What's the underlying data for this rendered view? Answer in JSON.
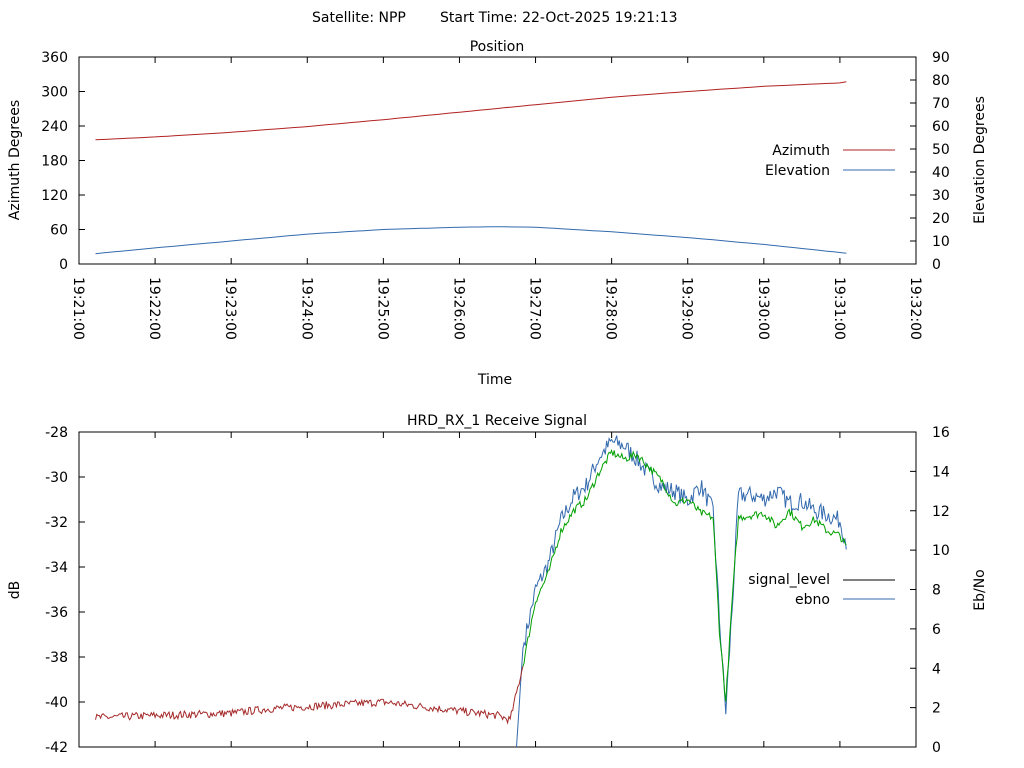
{
  "header": {
    "satellite": "Satellite: NPP",
    "start_time": "Start Time: 22-Oct-2025 19:21:13"
  },
  "chart_data": [
    {
      "type": "line",
      "title": "Position",
      "xlabel": "Time",
      "ylabel": "Azimuth Degrees",
      "y2label": "Elevation Degrees",
      "xlim": [
        "19:21:00",
        "19:32:00"
      ],
      "x_ticks": [
        "19:21:00",
        "19:22:00",
        "19:23:00",
        "19:24:00",
        "19:25:00",
        "19:26:00",
        "19:27:00",
        "19:28:00",
        "19:29:00",
        "19:30:00",
        "19:31:00",
        "19:32:00"
      ],
      "ylim": [
        0,
        360
      ],
      "y_ticks": [
        "0",
        "60",
        "120",
        "180",
        "240",
        "300",
        "360"
      ],
      "y2lim": [
        0,
        90
      ],
      "y2_ticks": [
        "0",
        "10",
        "20",
        "30",
        "40",
        "50",
        "60",
        "70",
        "80",
        "90"
      ],
      "legend_position": "right",
      "grid": false,
      "series": [
        {
          "name": "Azimuth",
          "axis": "left",
          "color": "#b22222",
          "x": [
            "19:21:13",
            "19:22:00",
            "19:23:00",
            "19:24:00",
            "19:25:00",
            "19:26:00",
            "19:27:00",
            "19:28:00",
            "19:29:00",
            "19:30:00",
            "19:31:00",
            "19:31:05"
          ],
          "values": [
            216,
            221,
            229,
            239,
            251,
            264,
            277,
            290,
            300,
            309,
            315,
            317
          ]
        },
        {
          "name": "Elevation",
          "axis": "right",
          "color": "#336aae",
          "x": [
            "19:21:13",
            "19:22:00",
            "19:23:00",
            "19:24:00",
            "19:25:00",
            "19:26:00",
            "19:26:30",
            "19:27:00",
            "19:28:00",
            "19:29:00",
            "19:30:00",
            "19:31:00",
            "19:31:05"
          ],
          "values": [
            4.5,
            7,
            10,
            13,
            15,
            16,
            16.2,
            16,
            14,
            11.5,
            8.5,
            5,
            4.7
          ]
        }
      ]
    },
    {
      "type": "line",
      "title": "HRD_RX_1 Receive Signal",
      "ylabel": "dB",
      "y2label": "Eb/No",
      "xlim": [
        "19:21:00",
        "19:32:00"
      ],
      "ylim": [
        -42,
        -28
      ],
      "y_ticks": [
        "-42",
        "-40",
        "-38",
        "-36",
        "-34",
        "-32",
        "-30",
        "-28"
      ],
      "y2lim": [
        0,
        16
      ],
      "y2_ticks": [
        "0",
        "2",
        "4",
        "6",
        "8",
        "10",
        "12",
        "14",
        "16"
      ],
      "legend_position": "right",
      "grid": false,
      "series": [
        {
          "name": "signal_level",
          "axis": "left",
          "color": "#000000",
          "segment_colors": {
            "low": "#a52a2a",
            "high": "#00a000"
          },
          "x": [
            "19:21:13",
            "19:22:00",
            "19:23:00",
            "19:23:30",
            "19:24:00",
            "19:25:00",
            "19:26:00",
            "19:26:30",
            "19:26:40",
            "19:26:50",
            "19:27:00",
            "19:27:10",
            "19:27:20",
            "19:27:30",
            "19:27:40",
            "19:27:50",
            "19:28:00",
            "19:28:10",
            "19:28:20",
            "19:28:30",
            "19:28:40",
            "19:28:50",
            "19:29:00",
            "19:29:10",
            "19:29:20",
            "19:29:25",
            "19:29:30",
            "19:29:35",
            "19:29:40",
            "19:29:50",
            "19:30:00",
            "19:30:10",
            "19:30:20",
            "19:30:30",
            "19:30:40",
            "19:30:50",
            "19:31:00",
            "19:31:05"
          ],
          "values": [
            -40.7,
            -40.6,
            -40.5,
            -40.3,
            -40.2,
            -40.0,
            -40.4,
            -40.6,
            -40.8,
            -38.4,
            -35.5,
            -34.3,
            -32.4,
            -31.5,
            -31.0,
            -29.8,
            -28.9,
            -29.2,
            -29.0,
            -29.6,
            -30.2,
            -31.2,
            -31.0,
            -31.6,
            -31.8,
            -36.8,
            -40.0,
            -35.5,
            -31.8,
            -31.7,
            -31.6,
            -32.2,
            -31.5,
            -32.2,
            -31.9,
            -32.4,
            -32.6,
            -33.1
          ]
        },
        {
          "name": "ebno",
          "axis": "right",
          "color": "#336aae",
          "x": [
            "19:26:45",
            "19:26:50",
            "19:27:00",
            "19:27:10",
            "19:27:20",
            "19:27:30",
            "19:27:40",
            "19:27:50",
            "19:28:00",
            "19:28:10",
            "19:28:20",
            "19:28:30",
            "19:28:40",
            "19:28:50",
            "19:29:00",
            "19:29:10",
            "19:29:20",
            "19:29:25",
            "19:29:30",
            "19:29:35",
            "19:29:40",
            "19:29:50",
            "19:30:00",
            "19:30:10",
            "19:30:20",
            "19:30:30",
            "19:30:40",
            "19:30:50",
            "19:31:00",
            "19:31:05"
          ],
          "values": [
            0,
            5,
            8,
            9.3,
            11.5,
            12.7,
            13.3,
            14.7,
            15.5,
            15.3,
            14.6,
            13.8,
            13.2,
            13.0,
            12.5,
            13.3,
            12.0,
            6.5,
            1.8,
            7.0,
            12.8,
            12.8,
            12.6,
            13.0,
            12.4,
            12.5,
            12.0,
            11.8,
            11.5,
            10.4
          ]
        }
      ]
    }
  ]
}
